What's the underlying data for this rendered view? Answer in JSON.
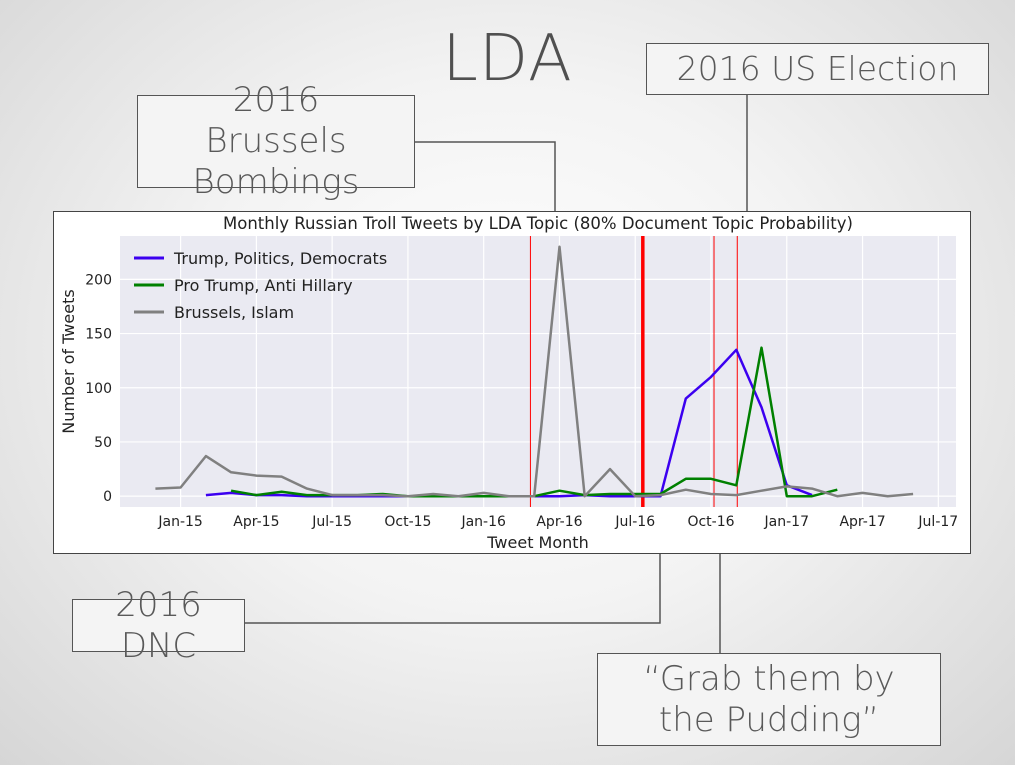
{
  "slide": {
    "title": "LDA"
  },
  "callouts": {
    "brussels": "2016 Brussels Bombings",
    "election": "2016 US Election",
    "dnc": "2016 DNC",
    "grab": "“Grab them by the Pudding”"
  },
  "chart_data": {
    "type": "line",
    "title": "Monthly Russian Troll Tweets by LDA Topic (80% Document Topic Probability)",
    "xlabel": "Tweet Month",
    "ylabel": "Number of Tweets",
    "ylim": [
      -10,
      240
    ],
    "yticks": [
      0,
      50,
      100,
      150,
      200
    ],
    "xticks": [
      "Jan-15",
      "Apr-15",
      "Jul-15",
      "Oct-15",
      "Jan-16",
      "Apr-16",
      "Jul-16",
      "Oct-16",
      "Jan-17",
      "Apr-17",
      "Jul-17"
    ],
    "x_months": [
      "Dec-14",
      "Jan-15",
      "Feb-15",
      "Mar-15",
      "Apr-15",
      "May-15",
      "Jun-15",
      "Jul-15",
      "Aug-15",
      "Sep-15",
      "Oct-15",
      "Nov-15",
      "Dec-15",
      "Jan-16",
      "Feb-16",
      "Mar-16",
      "Apr-16",
      "May-16",
      "Jun-16",
      "Jul-16",
      "Aug-16",
      "Sep-16",
      "Oct-16",
      "Nov-16",
      "Dec-16",
      "Jan-17",
      "Feb-17",
      "Mar-17",
      "Apr-17",
      "May-17",
      "Jun-17"
    ],
    "grid": true,
    "legend": "top-left",
    "colors": {
      "panel": "#eaeaf2",
      "vline": "#ff0000"
    },
    "series": [
      {
        "name": "Trump, Politics, Democrats",
        "color": "#3c00f0",
        "start": "Feb-15",
        "values": [
          1,
          3,
          1,
          1,
          0,
          0,
          0,
          0,
          0,
          0,
          0,
          0,
          0,
          0,
          0,
          1,
          0,
          0,
          0,
          90,
          110,
          135,
          82,
          10,
          1
        ]
      },
      {
        "name": "Pro Trump, Anti Hillary",
        "color": "#008000",
        "start": "Mar-15",
        "values": [
          5,
          1,
          4,
          1,
          1,
          1,
          2,
          0,
          0,
          0,
          0,
          0,
          0,
          5,
          1,
          2,
          2,
          2,
          16,
          16,
          10,
          137,
          0,
          0,
          6
        ]
      },
      {
        "name": "Brussels, Islam",
        "color": "#808080",
        "start": "Dec-14",
        "values": [
          7,
          8,
          37,
          22,
          19,
          18,
          7,
          1,
          1,
          1,
          0,
          2,
          0,
          3,
          0,
          0,
          230,
          0,
          25,
          0,
          1,
          6,
          2,
          1,
          5,
          9,
          7,
          0,
          3,
          0,
          2
        ]
      }
    ],
    "event_lines": [
      {
        "month": "Mar-16",
        "label": "2016 Brussels Bombings",
        "style": "thin"
      },
      {
        "month": "Jul-16",
        "label": "2016 DNC",
        "style": "thick"
      },
      {
        "month": "Oct-16",
        "label": "Grab them by the Pudding",
        "style": "thin"
      },
      {
        "month": "Nov-16",
        "label": "2016 US Election",
        "style": "thin"
      }
    ]
  }
}
